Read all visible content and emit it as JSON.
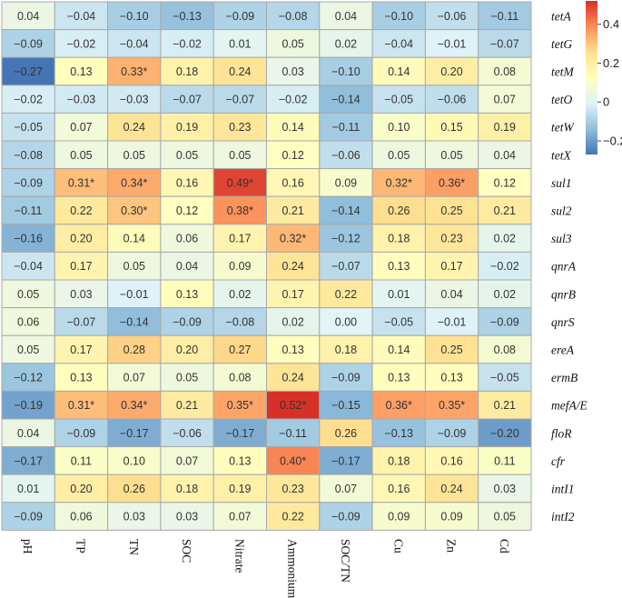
{
  "chart_data": {
    "type": "heatmap",
    "title": "",
    "columns": [
      "pH",
      "TP",
      "TN",
      "SOC",
      "Nitrate",
      "Ammonium",
      "SOC/TN",
      "Cu",
      "Zn",
      "Cd"
    ],
    "rows": [
      "tetA",
      "tetG",
      "tetM",
      "tetO",
      "tetW",
      "tetX",
      "sul1",
      "sul2",
      "sul3",
      "qnrA",
      "qnrB",
      "qnrS",
      "ereA",
      "ermB",
      "mefA/E",
      "floR",
      "cfr",
      "intI1",
      "intI2"
    ],
    "values": [
      [
        0.04,
        -0.04,
        -0.1,
        -0.13,
        -0.09,
        -0.08,
        0.04,
        -0.1,
        -0.06,
        -0.11
      ],
      [
        -0.09,
        -0.02,
        -0.04,
        -0.02,
        0.01,
        0.05,
        0.02,
        -0.04,
        -0.01,
        -0.07
      ],
      [
        -0.27,
        0.13,
        0.33,
        0.18,
        0.24,
        0.03,
        -0.1,
        0.14,
        0.2,
        0.08
      ],
      [
        -0.02,
        -0.03,
        -0.03,
        -0.07,
        -0.07,
        -0.02,
        -0.14,
        -0.05,
        -0.06,
        0.07
      ],
      [
        -0.05,
        0.07,
        0.24,
        0.19,
        0.23,
        0.14,
        -0.11,
        0.1,
        0.15,
        0.19
      ],
      [
        -0.08,
        0.05,
        0.05,
        0.05,
        0.05,
        0.12,
        -0.06,
        0.05,
        0.05,
        0.04
      ],
      [
        -0.09,
        0.31,
        0.34,
        0.16,
        0.49,
        0.16,
        0.09,
        0.32,
        0.36,
        0.12
      ],
      [
        -0.11,
        0.22,
        0.3,
        0.12,
        0.38,
        0.21,
        -0.14,
        0.26,
        0.25,
        0.21
      ],
      [
        -0.16,
        0.2,
        0.14,
        0.06,
        0.17,
        0.32,
        -0.12,
        0.18,
        0.23,
        0.02
      ],
      [
        -0.04,
        0.17,
        0.05,
        0.04,
        0.09,
        0.24,
        -0.07,
        0.13,
        0.17,
        -0.02
      ],
      [
        0.05,
        0.03,
        -0.01,
        0.13,
        0.02,
        0.17,
        0.22,
        0.01,
        0.04,
        0.02
      ],
      [
        0.06,
        -0.07,
        -0.14,
        -0.09,
        -0.08,
        0.02,
        0.0,
        -0.05,
        -0.01,
        -0.09
      ],
      [
        0.05,
        0.17,
        0.28,
        0.2,
        0.27,
        0.13,
        0.18,
        0.14,
        0.25,
        0.08
      ],
      [
        -0.12,
        0.13,
        0.07,
        0.05,
        0.08,
        0.24,
        -0.09,
        0.13,
        0.13,
        -0.05
      ],
      [
        -0.19,
        0.31,
        0.34,
        0.21,
        0.35,
        0.52,
        -0.15,
        0.36,
        0.35,
        0.21
      ],
      [
        0.04,
        -0.09,
        -0.17,
        -0.06,
        -0.17,
        -0.11,
        0.26,
        -0.13,
        -0.09,
        -0.2
      ],
      [
        -0.17,
        0.11,
        0.1,
        0.07,
        0.13,
        0.4,
        -0.17,
        0.18,
        0.16,
        0.11
      ],
      [
        0.01,
        0.2,
        0.26,
        0.18,
        0.19,
        0.23,
        0.07,
        0.16,
        0.24,
        0.03
      ],
      [
        -0.09,
        0.06,
        0.03,
        0.03,
        0.07,
        0.22,
        -0.09,
        0.09,
        0.09,
        0.05
      ]
    ],
    "cell_labels": [
      [
        "0.04",
        "−0.04",
        "−0.10",
        "−0.13",
        "−0.09",
        "−0.08",
        "0.04",
        "−0.10",
        "−0.06",
        "−0.11"
      ],
      [
        "−0.09",
        "−0.02",
        "−0.04",
        "−0.02",
        "0.01",
        "0.05",
        "0.02",
        "−0.04",
        "−0.01",
        "−0.07"
      ],
      [
        "−0.27",
        "0.13",
        "0.33*",
        "0.18",
        "0.24",
        "0.03",
        "−0.10",
        "0.14",
        "0.20",
        "0.08"
      ],
      [
        "−0.02",
        "−0.03",
        "−0.03",
        "−0.07",
        "−0.07",
        "−0.02",
        "−0.14",
        "−0.05",
        "−0.06",
        "0.07"
      ],
      [
        "−0.05",
        "0.07",
        "0.24",
        "0.19",
        "0.23",
        "0.14",
        "−0.11",
        "0.10",
        "0.15",
        "0.19"
      ],
      [
        "−0.08",
        "0.05",
        "0.05",
        "0.05",
        "0.05",
        "0.12",
        "−0.06",
        "0.05",
        "0.05",
        "0.04"
      ],
      [
        "−0.09",
        "0.31*",
        "0.34*",
        "0.16",
        "0.49*",
        "0.16",
        "0.09",
        "0.32*",
        "0.36*",
        "0.12"
      ],
      [
        "−0.11",
        "0.22",
        "0.30*",
        "0.12",
        "0.38*",
        "0.21",
        "−0.14",
        "0.26",
        "0.25",
        "0.21"
      ],
      [
        "−0.16",
        "0.20",
        "0.14",
        "0.06",
        "0.17",
        "0.32*",
        "−0.12",
        "0.18",
        "0.23",
        "0.02"
      ],
      [
        "−0.04",
        "0.17",
        "0.05",
        "0.04",
        "0.09",
        "0.24",
        "−0.07",
        "0.13",
        "0.17",
        "−0.02"
      ],
      [
        "0.05",
        "0.03",
        "−0.01",
        "0.13",
        "0.02",
        "0.17",
        "0.22",
        "0.01",
        "0.04",
        "0.02"
      ],
      [
        "0.06",
        "−0.07",
        "−0.14",
        "−0.09",
        "−0.08",
        "0.02",
        "0.00",
        "−0.05",
        "−0.01",
        "−0.09"
      ],
      [
        "0.05",
        "0.17",
        "0.28",
        "0.20",
        "0.27",
        "0.13",
        "0.18",
        "0.14",
        "0.25",
        "0.08"
      ],
      [
        "−0.12",
        "0.13",
        "0.07",
        "0.05",
        "0.08",
        "0.24",
        "−0.09",
        "0.13",
        "0.13",
        "−0.05"
      ],
      [
        "−0.19",
        "0.31*",
        "0.34*",
        "0.21",
        "0.35*",
        "0.52*",
        "−0.15",
        "0.36*",
        "0.35*",
        "0.21"
      ],
      [
        "0.04",
        "−0.09",
        "−0.17",
        "−0.06",
        "−0.17",
        "−0.11",
        "0.26",
        "−0.13",
        "−0.09",
        "−0.20"
      ],
      [
        "−0.17",
        "0.11",
        "0.10",
        "0.07",
        "0.13",
        "0.40*",
        "−0.17",
        "0.18",
        "0.16",
        "0.11"
      ],
      [
        "0.01",
        "0.20",
        "0.26",
        "0.18",
        "0.19",
        "0.23",
        "0.07",
        "0.16",
        "0.24",
        "0.03"
      ],
      [
        "−0.09",
        "0.06",
        "0.03",
        "0.03",
        "0.07",
        "0.22",
        "−0.09",
        "0.09",
        "0.09",
        "0.05"
      ]
    ],
    "colorbar": {
      "range": [
        -0.27,
        0.52
      ],
      "ticks": [
        -0.2,
        0,
        0.2,
        0.4
      ],
      "tick_labels": [
        "−0.2",
        "0",
        "0.2",
        "0.4"
      ],
      "colors": [
        "#4575b4",
        "#91bfdb",
        "#e0f3f8",
        "#ffffbf",
        "#fee090",
        "#fc8d59",
        "#d73027"
      ]
    },
    "xlabel": "",
    "ylabel": ""
  }
}
